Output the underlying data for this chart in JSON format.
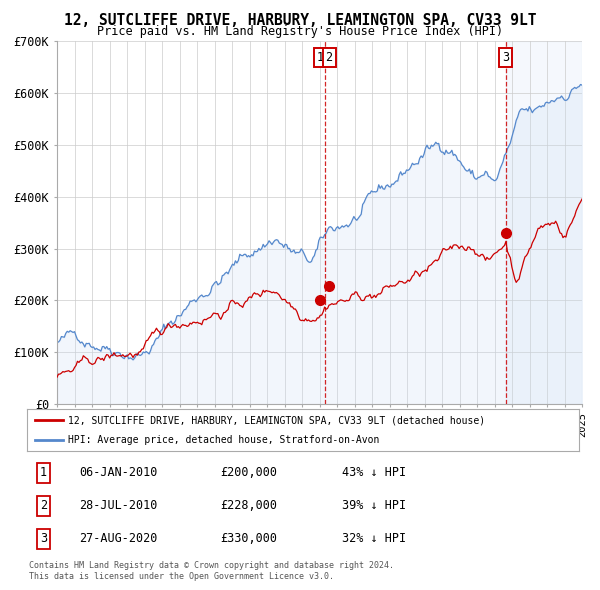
{
  "title": "12, SUTCLIFFE DRIVE, HARBURY, LEAMINGTON SPA, CV33 9LT",
  "subtitle": "Price paid vs. HM Land Registry's House Price Index (HPI)",
  "legend_line1": "12, SUTCLIFFE DRIVE, HARBURY, LEAMINGTON SPA, CV33 9LT (detached house)",
  "legend_line2": "HPI: Average price, detached house, Stratford-on-Avon",
  "footer1": "Contains HM Land Registry data © Crown copyright and database right 2024.",
  "footer2": "This data is licensed under the Open Government Licence v3.0.",
  "transactions": [
    {
      "num": "1",
      "date": "06-JAN-2010",
      "price": "£200,000",
      "hpi": "43% ↓ HPI",
      "x_year": 2010.03
    },
    {
      "num": "2",
      "date": "28-JUL-2010",
      "price": "£228,000",
      "hpi": "39% ↓ HPI",
      "x_year": 2010.57
    },
    {
      "num": "3",
      "date": "27-AUG-2020",
      "price": "£330,000",
      "hpi": "32% ↓ HPI",
      "x_year": 2020.65
    }
  ],
  "sale_prices": [
    200000,
    228000,
    330000
  ],
  "sale_years": [
    2010.03,
    2010.57,
    2020.65
  ],
  "red_line_color": "#cc0000",
  "blue_line_color": "#5588cc",
  "blue_fill_color": "#ccddf5",
  "dashed_line_color": "#cc0000",
  "grid_color": "#cccccc",
  "background_color": "#ffffff",
  "xmin": 1995,
  "xmax": 2025,
  "ymin": 0,
  "ymax": 700000,
  "yticks": [
    0,
    100000,
    200000,
    300000,
    400000,
    500000,
    600000,
    700000
  ],
  "ytick_labels": [
    "£0",
    "£100K",
    "£200K",
    "£300K",
    "£400K",
    "£500K",
    "£600K",
    "£700K"
  ],
  "vline1_x": 2010.3,
  "vline2_x": 2020.65,
  "shade_start": 2020.65,
  "shade_end": 2025
}
